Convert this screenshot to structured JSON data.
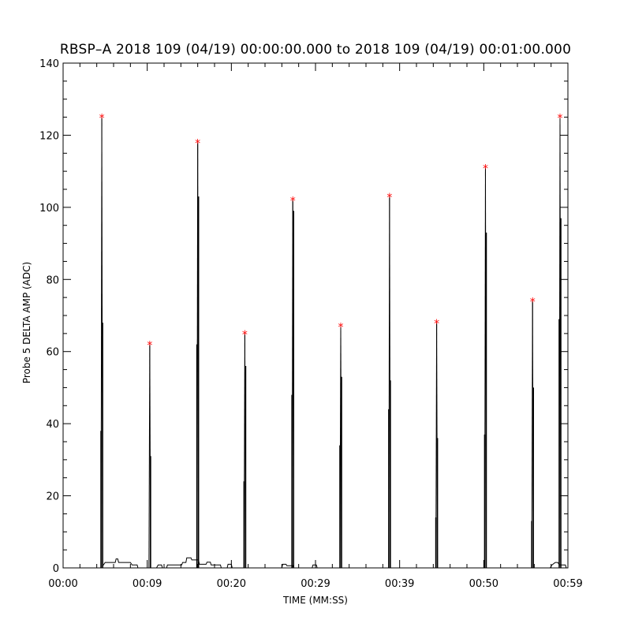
{
  "chart_data": {
    "type": "line",
    "title": "RBSP–A 2018 109 (04/19) 00:00:00.000 to 2018 109 (04/19) 00:01:00.000",
    "xlabel": "TIME (MM:SS)",
    "ylabel": "Probe 5 DELTA AMP (ADC)",
    "xlim_seconds": [
      0,
      60
    ],
    "ylim": [
      0,
      140
    ],
    "x_ticks": [
      {
        "value": 0,
        "label": "00:00"
      },
      {
        "value": 10,
        "label": "00:09"
      },
      {
        "value": 20,
        "label": "00:20"
      },
      {
        "value": 30,
        "label": "00:29"
      },
      {
        "value": 40,
        "label": "00:39"
      },
      {
        "value": 50,
        "label": "00:50"
      },
      {
        "value": 60,
        "label": "00:59"
      }
    ],
    "y_ticks": [
      0,
      20,
      40,
      60,
      80,
      100,
      120,
      140
    ],
    "series": [
      {
        "color": "#000000",
        "spikes": [
          {
            "t": 4.6,
            "peak": 125,
            "mid": [
              68,
              38
            ]
          },
          {
            "t": 10.3,
            "peak": 62,
            "mid": [
              31
            ]
          },
          {
            "t": 16.0,
            "peak": 118,
            "mid": [
              103,
              62
            ]
          },
          {
            "t": 21.6,
            "peak": 65,
            "mid": [
              56,
              24
            ]
          },
          {
            "t": 27.3,
            "peak": 102,
            "mid": [
              99,
              48
            ]
          },
          {
            "t": 33.0,
            "peak": 67,
            "mid": [
              53,
              34
            ]
          },
          {
            "t": 38.8,
            "peak": 103,
            "mid": [
              52,
              44
            ]
          },
          {
            "t": 44.4,
            "peak": 68,
            "mid": [
              36,
              14
            ]
          },
          {
            "t": 50.2,
            "peak": 111,
            "mid": [
              93,
              37
            ]
          },
          {
            "t": 55.8,
            "peak": 74,
            "mid": [
              50,
              13
            ]
          },
          {
            "t": 61.6,
            "peak": 125,
            "mid": [
              97,
              69
            ]
          }
        ],
        "baseline": [
          [
            4.7,
            0.5
          ],
          [
            5.0,
            1.5
          ],
          [
            6.2,
            1.5
          ],
          [
            6.3,
            2.5
          ],
          [
            6.5,
            2.5
          ],
          [
            6.6,
            1.5
          ],
          [
            8.0,
            1.5
          ],
          [
            8.2,
            0.8
          ],
          [
            8.8,
            0.8
          ],
          [
            8.9,
            0
          ],
          [
            11.1,
            0
          ],
          [
            11.3,
            0.8
          ],
          [
            11.7,
            0.8
          ],
          [
            11.8,
            0
          ],
          [
            12.3,
            0
          ],
          [
            12.4,
            0.8
          ],
          [
            14.1,
            0.8
          ],
          [
            14.2,
            1.5
          ],
          [
            14.6,
            1.5
          ],
          [
            14.7,
            2.8
          ],
          [
            15.2,
            2.8
          ],
          [
            15.3,
            2.2
          ],
          [
            16.1,
            2.2
          ],
          [
            16.2,
            1.0
          ],
          [
            17.0,
            1.0
          ],
          [
            17.1,
            1.6
          ],
          [
            17.5,
            1.6
          ],
          [
            17.6,
            0.8
          ],
          [
            18.7,
            0.8
          ],
          [
            18.8,
            0
          ],
          [
            19.5,
            0
          ],
          [
            19.6,
            1.0
          ],
          [
            20.0,
            1.0
          ],
          [
            20.1,
            0
          ],
          [
            26.0,
            0
          ],
          [
            26.1,
            1.0
          ],
          [
            26.5,
            1.0
          ],
          [
            26.6,
            0.6
          ],
          [
            27.3,
            0.6
          ],
          [
            27.4,
            0
          ],
          [
            29.6,
            0
          ],
          [
            29.7,
            0.8
          ],
          [
            30.1,
            0.8
          ],
          [
            30.2,
            0
          ],
          [
            57.9,
            0
          ],
          [
            58.1,
            0.8
          ],
          [
            58.5,
            1.5
          ],
          [
            58.8,
            1.5
          ],
          [
            59.0,
            0.8
          ],
          [
            59.7,
            0.8
          ],
          [
            59.8,
            0
          ]
        ]
      }
    ],
    "peak_marker_color": "#ff0000",
    "grid": false,
    "legend": "none"
  }
}
